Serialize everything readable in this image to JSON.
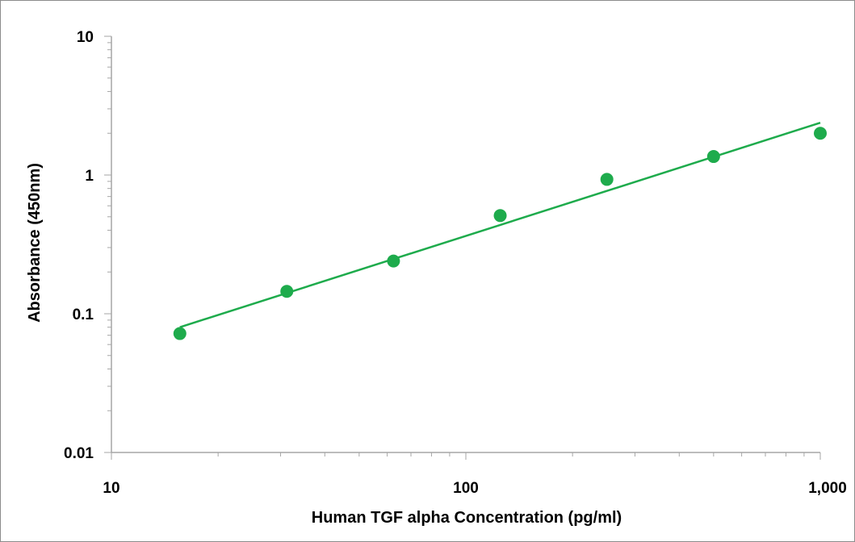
{
  "chart_data": {
    "type": "scatter",
    "title": "",
    "xlabel": "Human TGF alpha Concentration (pg/ml)",
    "ylabel": "Absorbance (450nm)",
    "xscale": "log",
    "yscale": "log",
    "xlim": [
      10,
      1000
    ],
    "ylim": [
      0.01,
      10
    ],
    "x_ticks": [
      {
        "value": 10,
        "label": "10"
      },
      {
        "value": 100,
        "label": "100"
      },
      {
        "value": 1000,
        "label": "1,000"
      }
    ],
    "y_ticks": [
      {
        "value": 0.01,
        "label": "0.01"
      },
      {
        "value": 0.1,
        "label": "0.1"
      },
      {
        "value": 1,
        "label": "1"
      },
      {
        "value": 10,
        "label": "10"
      }
    ],
    "grid": false,
    "legend": "none",
    "series": [
      {
        "type": "scatter",
        "x": [
          15.6,
          31.25,
          62.5,
          125,
          250,
          500,
          1000
        ],
        "y": [
          0.072,
          0.145,
          0.24,
          0.51,
          0.93,
          1.36,
          2.0
        ]
      },
      {
        "type": "line",
        "x": [
          15.6,
          1000
        ],
        "y": [
          0.08,
          2.38
        ]
      }
    ],
    "colors": {
      "marker": "#1eab4c",
      "line": "#1eab4c",
      "axis": "#a6a6a6",
      "text": "#000000"
    }
  }
}
